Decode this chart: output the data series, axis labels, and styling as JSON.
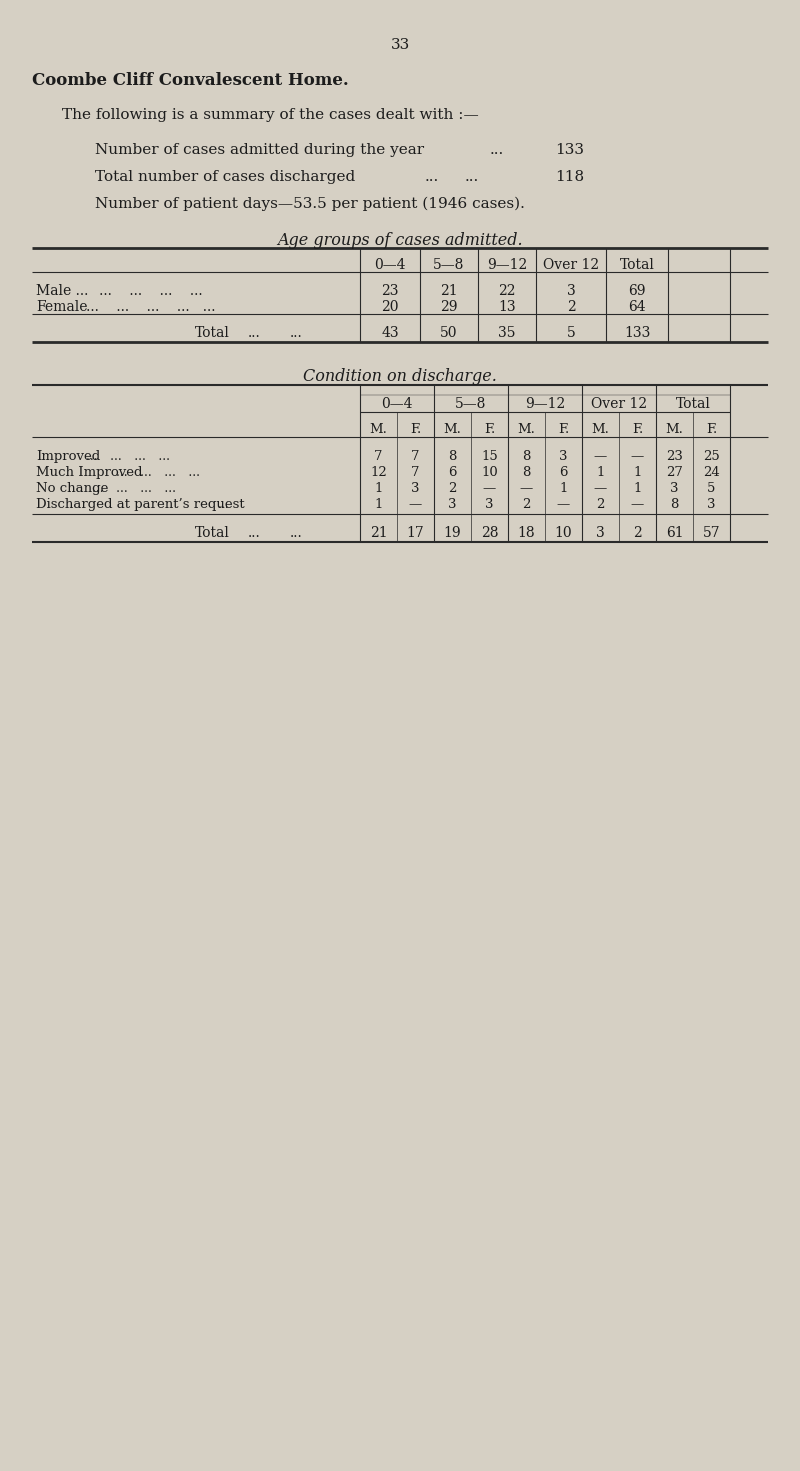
{
  "page_number": "33",
  "bg_color": "#d6d0c4",
  "title_bold": "Coombe Cliff Convalescent Home.",
  "intro_text": "The following is a summary of the cases dealt with :—",
  "stat1_label": "Number of cases admitted during the year",
  "stat1_dots": "...",
  "stat1_value": "133",
  "stat2_label": "Total number of cases discharged",
  "stat2_dots": "...",
  "stat2_dots2": "...",
  "stat2_value": "118",
  "stat3": "Number of patient days—53.5 per patient (1946 cases).",
  "table1_title": "Age groups of cases admitted.",
  "table1_col_headers": [
    "0—4",
    "5—8",
    "9—12",
    "Over 12",
    "Total"
  ],
  "table1_row1_label": "Male ...",
  "table1_row1_dots": "... ... ... ...",
  "table1_row2_label": "Female",
  "table1_row2_dots": "... ... ... ... ...",
  "table1_data": [
    [
      23,
      21,
      22,
      3,
      69
    ],
    [
      20,
      29,
      13,
      2,
      64
    ]
  ],
  "table1_totals": [
    43,
    50,
    35,
    5,
    133
  ],
  "table2_title": "Condition on discharge.",
  "table2_age_headers": [
    "0—4",
    "5—8",
    "9—12",
    "Over 12",
    "Total"
  ],
  "table2_mf_headers": [
    "M.",
    "F.",
    "M.",
    "F.",
    "M.",
    "F.",
    "M.",
    "F.",
    "M.",
    "F."
  ],
  "table2_row_labels": [
    "Improved",
    "Much Improved",
    "No change",
    "Discharged at parent’s request"
  ],
  "table2_row_dots": [
    "... ... ... ...",
    "... ... ... ...",
    "... ... ... ...",
    "..."
  ],
  "table2_data": [
    [
      "7",
      "7",
      "8",
      "15",
      "8",
      "3",
      "—",
      "—",
      "23",
      "25"
    ],
    [
      "12",
      "7",
      "6",
      "10",
      "8",
      "6",
      "1",
      "1",
      "27",
      "24"
    ],
    [
      "1",
      "3",
      "2",
      "—",
      "—",
      "1",
      "—",
      "1",
      "3",
      "5"
    ],
    [
      "1",
      "—",
      "3",
      "3",
      "2",
      "—",
      "2",
      "—",
      "8",
      "3"
    ]
  ],
  "table2_totals": [
    "21",
    "17",
    "19",
    "28",
    "18",
    "10",
    "3",
    "2",
    "61",
    "57"
  ],
  "text_color": "#1c1c1c",
  "line_color": "#2a2a2a"
}
